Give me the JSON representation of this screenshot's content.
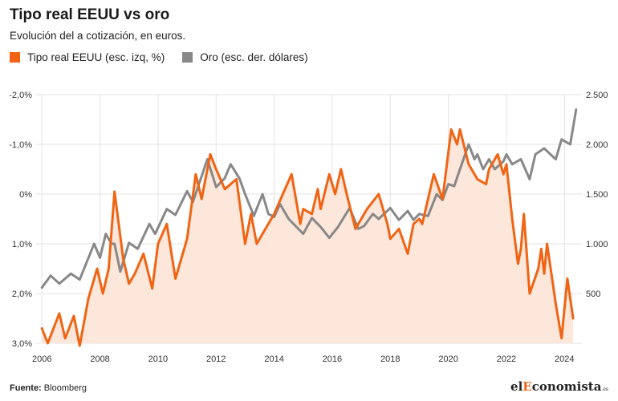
{
  "title": "Tipo real EEUU vs oro",
  "subtitle": "Evolución del a cotización, en euros.",
  "source_label": "Fuente:",
  "source_value": "Bloomberg",
  "logo": {
    "pre": "el",
    "accent": "E",
    "post": "conomista",
    "suffix": ".es"
  },
  "colors": {
    "orange": "#f06414",
    "gray": "#888888",
    "fill": "#fde6da",
    "grid": "#e3e3e3"
  },
  "chart_data": {
    "type": "line",
    "x_ticks": [
      "2006",
      "2008",
      "2010",
      "2012",
      "2014",
      "2016",
      "2018",
      "2020",
      "2022",
      "2024"
    ],
    "y_left": {
      "min": -2.0,
      "max": 3.0,
      "inverted": true,
      "ticks": [
        {
          "v": -2.0,
          "label": "-2,0%"
        },
        {
          "v": -1.0,
          "label": "-1,0%"
        },
        {
          "v": 0,
          "label": "0%"
        },
        {
          "v": 1.0,
          "label": "1,0%"
        },
        {
          "v": 2.0,
          "label": "2,0%"
        },
        {
          "v": 3.0,
          "label": "3,0%"
        }
      ]
    },
    "y_right": {
      "min": 0,
      "max": 2500,
      "ticks": [
        {
          "v": 2500,
          "label": "2.500"
        },
        {
          "v": 2000,
          "label": "2.000"
        },
        {
          "v": 1500,
          "label": "1.500"
        },
        {
          "v": 1000,
          "label": "1.000"
        },
        {
          "v": 500,
          "label": "500"
        }
      ]
    },
    "grid": true,
    "legend_position": "top-left",
    "series": [
      {
        "name": "Tipo real EEUU (esc. izq, %)",
        "axis": "left",
        "color": "#f06414",
        "area": true,
        "points": [
          [
            2006.0,
            2.7
          ],
          [
            2006.2,
            3.0
          ],
          [
            2006.6,
            2.4
          ],
          [
            2006.8,
            2.9
          ],
          [
            2007.1,
            2.45
          ],
          [
            2007.3,
            3.05
          ],
          [
            2007.6,
            2.1
          ],
          [
            2007.9,
            1.5
          ],
          [
            2008.0,
            1.75
          ],
          [
            2008.1,
            2.0
          ],
          [
            2008.3,
            1.5
          ],
          [
            2008.5,
            -0.05
          ],
          [
            2008.8,
            1.3
          ],
          [
            2009.0,
            1.8
          ],
          [
            2009.2,
            1.6
          ],
          [
            2009.5,
            1.2
          ],
          [
            2009.8,
            1.9
          ],
          [
            2010.0,
            1.0
          ],
          [
            2010.3,
            0.6
          ],
          [
            2010.6,
            1.7
          ],
          [
            2011.0,
            0.9
          ],
          [
            2011.3,
            -0.4
          ],
          [
            2011.5,
            0.1
          ],
          [
            2011.8,
            -0.8
          ],
          [
            2012.0,
            -0.5
          ],
          [
            2012.3,
            -0.1
          ],
          [
            2012.7,
            -0.3
          ],
          [
            2013.0,
            1.0
          ],
          [
            2013.2,
            0.4
          ],
          [
            2013.4,
            1.0
          ],
          [
            2013.7,
            0.7
          ],
          [
            2014.0,
            0.4
          ],
          [
            2014.3,
            0.0
          ],
          [
            2014.6,
            -0.4
          ],
          [
            2014.9,
            0.6
          ],
          [
            2015.0,
            0.3
          ],
          [
            2015.3,
            0.4
          ],
          [
            2015.5,
            -0.1
          ],
          [
            2015.6,
            0.3
          ],
          [
            2015.9,
            -0.4
          ],
          [
            2016.1,
            0.0
          ],
          [
            2016.3,
            -0.5
          ],
          [
            2016.5,
            0.0
          ],
          [
            2016.8,
            0.7
          ],
          [
            2017.2,
            0.3
          ],
          [
            2017.6,
            0.0
          ],
          [
            2017.9,
            0.6
          ],
          [
            2018.0,
            0.9
          ],
          [
            2018.3,
            0.7
          ],
          [
            2018.6,
            1.2
          ],
          [
            2018.8,
            0.6
          ],
          [
            2019.0,
            0.5
          ],
          [
            2019.1,
            0.6
          ],
          [
            2019.5,
            -0.4
          ],
          [
            2019.8,
            0.1
          ],
          [
            2020.1,
            -1.3
          ],
          [
            2020.3,
            -1.0
          ],
          [
            2020.4,
            -1.3
          ],
          [
            2020.7,
            -0.6
          ],
          [
            2021.0,
            -0.3
          ],
          [
            2021.3,
            -0.2
          ],
          [
            2021.4,
            -0.5
          ],
          [
            2021.7,
            -0.8
          ],
          [
            2021.9,
            -0.4
          ],
          [
            2022.0,
            -0.6
          ],
          [
            2022.2,
            0.5
          ],
          [
            2022.4,
            1.4
          ],
          [
            2022.5,
            1.1
          ],
          [
            2022.6,
            0.4
          ],
          [
            2022.8,
            2.0
          ],
          [
            2023.1,
            1.5
          ],
          [
            2023.2,
            1.1
          ],
          [
            2023.3,
            1.6
          ],
          [
            2023.4,
            1.0
          ],
          [
            2023.7,
            2.2
          ],
          [
            2023.9,
            2.9
          ],
          [
            2024.1,
            1.7
          ],
          [
            2024.3,
            2.5
          ]
        ]
      },
      {
        "name": "Oro (esc. der. dólares)",
        "axis": "right",
        "color": "#888888",
        "area": false,
        "points": [
          [
            2006.0,
            560
          ],
          [
            2006.3,
            680
          ],
          [
            2006.6,
            600
          ],
          [
            2007.0,
            700
          ],
          [
            2007.3,
            640
          ],
          [
            2007.8,
            1000
          ],
          [
            2008.0,
            860
          ],
          [
            2008.2,
            1100
          ],
          [
            2008.4,
            1000
          ],
          [
            2008.5,
            1000
          ],
          [
            2008.7,
            720
          ],
          [
            2009.0,
            1010
          ],
          [
            2009.3,
            950
          ],
          [
            2009.7,
            1200
          ],
          [
            2009.9,
            1100
          ],
          [
            2010.3,
            1350
          ],
          [
            2010.6,
            1290
          ],
          [
            2011.0,
            1530
          ],
          [
            2011.2,
            1420
          ],
          [
            2011.7,
            1850
          ],
          [
            2012.0,
            1570
          ],
          [
            2012.3,
            1660
          ],
          [
            2012.5,
            1800
          ],
          [
            2012.8,
            1660
          ],
          [
            2013.0,
            1500
          ],
          [
            2013.3,
            1280
          ],
          [
            2013.6,
            1500
          ],
          [
            2013.8,
            1300
          ],
          [
            2014.0,
            1270
          ],
          [
            2014.2,
            1400
          ],
          [
            2014.5,
            1250
          ],
          [
            2015.0,
            1100
          ],
          [
            2015.3,
            1260
          ],
          [
            2015.6,
            1170
          ],
          [
            2015.9,
            1060
          ],
          [
            2016.2,
            1170
          ],
          [
            2016.6,
            1360
          ],
          [
            2016.9,
            1150
          ],
          [
            2017.1,
            1180
          ],
          [
            2017.4,
            1300
          ],
          [
            2017.6,
            1250
          ],
          [
            2018.0,
            1360
          ],
          [
            2018.3,
            1240
          ],
          [
            2018.6,
            1330
          ],
          [
            2018.8,
            1240
          ],
          [
            2019.0,
            1300
          ],
          [
            2019.3,
            1280
          ],
          [
            2019.6,
            1500
          ],
          [
            2019.8,
            1440
          ],
          [
            2020.0,
            1600
          ],
          [
            2020.2,
            1580
          ],
          [
            2020.4,
            1750
          ],
          [
            2020.7,
            2000
          ],
          [
            2020.9,
            1850
          ],
          [
            2021.0,
            1900
          ],
          [
            2021.2,
            1750
          ],
          [
            2021.4,
            1850
          ],
          [
            2021.6,
            1750
          ],
          [
            2021.9,
            1830
          ],
          [
            2022.0,
            1900
          ],
          [
            2022.2,
            1800
          ],
          [
            2022.5,
            1850
          ],
          [
            2022.8,
            1650
          ],
          [
            2023.0,
            1900
          ],
          [
            2023.3,
            1960
          ],
          [
            2023.7,
            1850
          ],
          [
            2023.9,
            2050
          ],
          [
            2024.2,
            2000
          ],
          [
            2024.4,
            2350
          ]
        ]
      }
    ]
  }
}
